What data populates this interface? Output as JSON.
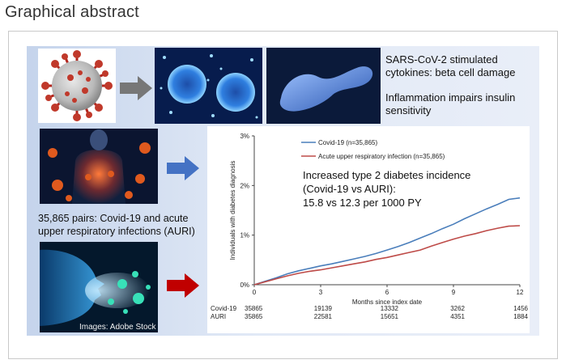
{
  "header": {
    "title": "Graphical abstract"
  },
  "text": {
    "cytokines": "SARS-CoV-2 stimulated cytokines: beta cell damage",
    "inflammation": "Inflammation impairs insulin sensitivity",
    "pairs": "35,865 pairs: Covid-19 and acute upper respiratory infections (AURI)",
    "credit": "Images: Adobe Stock"
  },
  "icons": {
    "arrow1": "gray-right-arrow",
    "arrow2": "blue-right-arrow",
    "arrow3": "red-right-arrow"
  },
  "colors": {
    "covid": "#4a7ebb",
    "auri": "#be4b48",
    "arrow_gray": "#777777",
    "arrow_blue": "#4472c4",
    "arrow_red": "#c00000"
  },
  "chart_data": {
    "type": "line",
    "title": "",
    "xlabel": "Months since index date",
    "ylabel": "Individuals with diabetes diagnosis",
    "xlim": [
      0,
      12
    ],
    "ylim": [
      0,
      3
    ],
    "xticks": [
      "0",
      "3",
      "6",
      "9",
      "12"
    ],
    "yticks": [
      "0%",
      "1%",
      "2%",
      "3%"
    ],
    "legend": [
      "Covid-19 (n=35,865)",
      "Acute upper respiratory infection  (n=35,865)"
    ],
    "annotation": [
      "Increased type 2 diabetes incidence",
      "(Covid-19 vs AURI):",
      "15.8 vs 12.3 per 1000 PY"
    ],
    "series": [
      {
        "name": "Covid-19 (n=35,865)",
        "x": [
          0,
          0.5,
          1,
          1.5,
          2,
          2.5,
          3,
          3.5,
          4,
          4.5,
          5,
          5.5,
          6,
          6.5,
          7,
          7.5,
          8,
          8.5,
          9,
          9.5,
          10,
          10.5,
          11,
          11.5,
          12
        ],
        "y": [
          0,
          0.07,
          0.14,
          0.22,
          0.28,
          0.33,
          0.38,
          0.42,
          0.47,
          0.52,
          0.57,
          0.63,
          0.7,
          0.77,
          0.85,
          0.94,
          1.03,
          1.13,
          1.22,
          1.33,
          1.43,
          1.53,
          1.62,
          1.72,
          1.75
        ]
      },
      {
        "name": "Acute upper respiratory infection  (n=35,865)",
        "x": [
          0,
          0.5,
          1,
          1.5,
          2,
          2.5,
          3,
          3.5,
          4,
          4.5,
          5,
          5.5,
          6,
          6.5,
          7,
          7.5,
          8,
          8.5,
          9,
          9.5,
          10,
          10.5,
          11,
          11.5,
          12
        ],
        "y": [
          0,
          0.06,
          0.12,
          0.18,
          0.23,
          0.27,
          0.3,
          0.34,
          0.38,
          0.42,
          0.46,
          0.51,
          0.55,
          0.6,
          0.65,
          0.7,
          0.78,
          0.85,
          0.92,
          0.98,
          1.03,
          1.09,
          1.14,
          1.18,
          1.19
        ]
      }
    ],
    "risk_table": {
      "rows": [
        {
          "label": "Covid-19",
          "values": [
            "35865",
            "19139",
            "13332",
            "3262",
            "1456"
          ]
        },
        {
          "label": "AURI",
          "values": [
            "35865",
            "22581",
            "15651",
            "4351",
            "1884"
          ]
        }
      ]
    }
  }
}
